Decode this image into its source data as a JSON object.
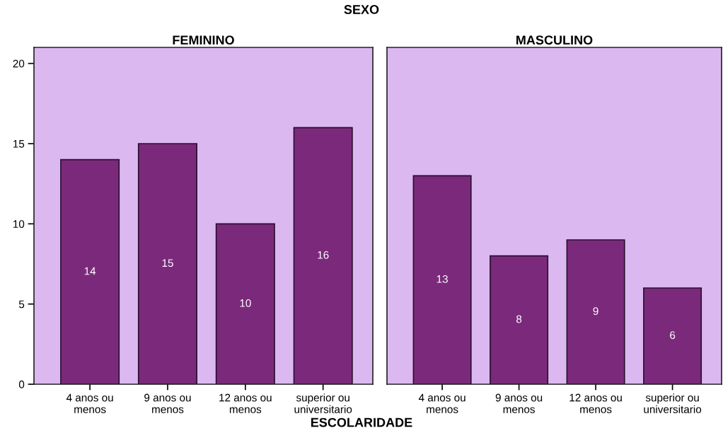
{
  "chart_data": [
    {
      "type": "bar",
      "title": "FEMININO",
      "xlabel": "ESCOLARIDADE",
      "annotations": [
        "SEXO"
      ],
      "categories": [
        "4 anos ou\nmenos",
        "9 anos ou\nmenos",
        "12 anos ou\nmenos",
        "superior ou\nuniversitario"
      ],
      "values": [
        14,
        15,
        10,
        16
      ],
      "color": "#7b2a7b",
      "data_labels": true,
      "ylim": [
        0,
        21
      ],
      "yticks": [
        0,
        5,
        10,
        15,
        20
      ],
      "grid": false,
      "legend": false
    },
    {
      "type": "bar",
      "title": "MASCULINO",
      "categories": [
        "4 anos ou\nmenos",
        "9 anos ou\nmenos",
        "12 anos ou\nmenos",
        "superior ou\nuniversitario"
      ],
      "values": [
        13,
        8,
        9,
        6
      ],
      "color": "#7b2a7b",
      "data_labels": true,
      "ylim": [
        0,
        21
      ],
      "yticks": [
        0,
        5,
        10,
        15,
        20
      ],
      "grid": false,
      "legend": false,
      "tick_labels": "x"
    }
  ]
}
